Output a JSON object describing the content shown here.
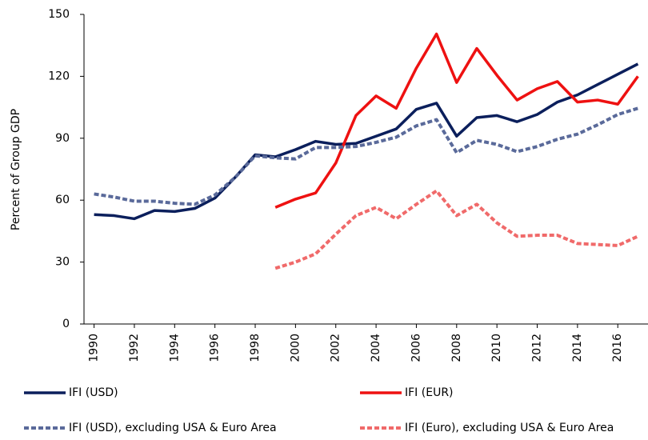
{
  "chart_data": {
    "type": "line",
    "ylabel": "Percent of Group GDP",
    "x": [
      1990,
      1991,
      1992,
      1993,
      1994,
      1995,
      1996,
      1997,
      1998,
      1999,
      2000,
      2001,
      2002,
      2003,
      2004,
      2005,
      2006,
      2007,
      2008,
      2009,
      2010,
      2011,
      2012,
      2013,
      2014,
      2015,
      2016,
      2017
    ],
    "xlim": [
      1989.5,
      2017.5
    ],
    "xticks": [
      1990,
      1992,
      1994,
      1996,
      1998,
      2000,
      2002,
      2004,
      2006,
      2008,
      2010,
      2012,
      2014,
      2016
    ],
    "ylim": [
      0,
      150
    ],
    "yticks": [
      0,
      30,
      60,
      90,
      120,
      150
    ],
    "grid": false,
    "legend": "bottom",
    "series": [
      {
        "name": "IFI (USD)",
        "color": "#0b1f5c",
        "dashed": false,
        "values": [
          53,
          52.5,
          51,
          55,
          54.5,
          56,
          61,
          71,
          82,
          81,
          84.5,
          88.5,
          87,
          87.5,
          91,
          94.5,
          104,
          107,
          91,
          100,
          101,
          98,
          101.5,
          107.5,
          111,
          116,
          121,
          126
        ]
      },
      {
        "name": "IFI (EUR)",
        "color": "#ee1111",
        "dashed": false,
        "values": [
          null,
          null,
          null,
          null,
          null,
          null,
          null,
          null,
          null,
          56.5,
          60.5,
          63.5,
          78,
          101,
          110.5,
          104.5,
          124,
          140.5,
          117,
          133.5,
          120.5,
          108.5,
          114,
          117.5,
          107.5,
          108.5,
          106.5,
          120
        ]
      },
      {
        "name": "IFI (USD), excluding USA & Euro Area",
        "color": "#5a6a9a",
        "dashed": true,
        "values": [
          63,
          61.5,
          59.5,
          59.5,
          58.5,
          58,
          62.5,
          71,
          81.5,
          80.5,
          80,
          85.5,
          85.5,
          86,
          88,
          90.5,
          96,
          99,
          83,
          89,
          87,
          83.5,
          86,
          89.5,
          92,
          96.5,
          101.5,
          104.5
        ]
      },
      {
        "name": "IFI (Euro), excluding USA & Euro Area",
        "color": "#f06a6a",
        "dashed": true,
        "values": [
          null,
          null,
          null,
          null,
          null,
          null,
          null,
          null,
          null,
          27,
          30,
          34,
          43.5,
          52.5,
          56.5,
          51,
          58,
          64.5,
          52.5,
          58,
          49,
          42.5,
          43,
          43,
          39,
          38.5,
          38,
          42.5
        ]
      }
    ]
  }
}
